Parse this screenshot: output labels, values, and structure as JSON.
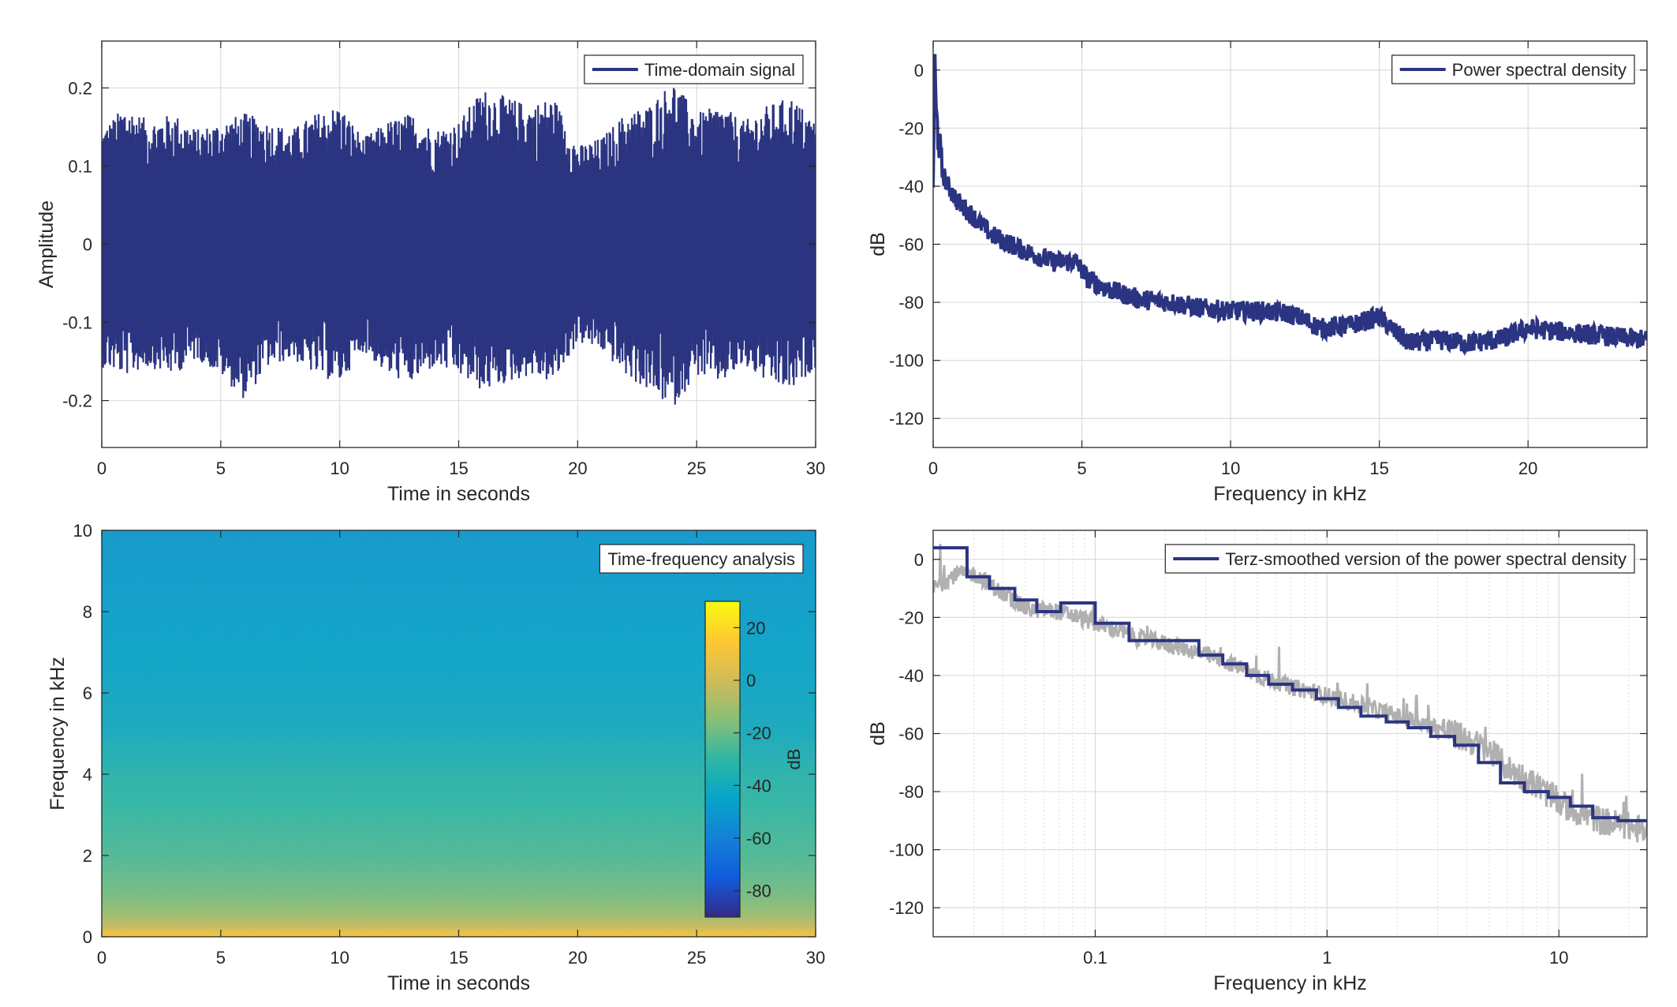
{
  "colors": {
    "series": "#2b3481",
    "raw_psd": "#b0b0b0",
    "grid": "#dcdcdc",
    "axis": "#262626"
  },
  "chart_data": [
    {
      "id": "time-signal",
      "type": "line",
      "legend": "Time-domain signal",
      "legend_position": "top-right",
      "xlabel": "Time in seconds",
      "ylabel": "Amplitude",
      "xlim": [
        0,
        30
      ],
      "ylim": [
        -0.26,
        0.26
      ],
      "xticks": [
        0,
        5,
        10,
        15,
        20,
        25,
        30
      ],
      "xtick_labels": [
        "0",
        "5",
        "10",
        "15",
        "20",
        "25",
        "30"
      ],
      "yticks": [
        -0.2,
        -0.1,
        0,
        0.1,
        0.2
      ],
      "ytick_labels": [
        "-0.2",
        "-0.1",
        "0",
        "0.1",
        "0.2"
      ],
      "grid": true,
      "envelope": {
        "t": [
          0,
          1,
          2,
          3,
          4,
          5,
          6,
          7,
          8,
          9,
          10,
          11,
          12,
          13,
          14,
          15,
          16,
          17,
          18,
          19,
          20,
          21,
          22,
          23,
          24,
          25,
          26,
          27,
          28,
          29,
          30
        ],
        "upper": [
          0.14,
          0.17,
          0.15,
          0.16,
          0.14,
          0.15,
          0.16,
          0.15,
          0.14,
          0.16,
          0.17,
          0.13,
          0.15,
          0.16,
          0.14,
          0.15,
          0.19,
          0.18,
          0.17,
          0.18,
          0.12,
          0.13,
          0.16,
          0.17,
          0.2,
          0.16,
          0.17,
          0.15,
          0.17,
          0.18,
          0.15
        ],
        "lower": [
          -0.15,
          -0.16,
          -0.15,
          -0.16,
          -0.14,
          -0.16,
          -0.19,
          -0.15,
          -0.14,
          -0.16,
          -0.17,
          -0.13,
          -0.16,
          -0.17,
          -0.15,
          -0.16,
          -0.18,
          -0.17,
          -0.16,
          -0.17,
          -0.12,
          -0.13,
          -0.16,
          -0.18,
          -0.2,
          -0.16,
          -0.17,
          -0.15,
          -0.17,
          -0.18,
          -0.15
        ]
      }
    },
    {
      "id": "psd",
      "type": "line",
      "legend": "Power spectral density",
      "legend_position": "top-right",
      "xlabel": "Frequency in kHz",
      "ylabel": "dB",
      "xlim": [
        0,
        24
      ],
      "ylim": [
        -130,
        10
      ],
      "xticks": [
        0,
        5,
        10,
        15,
        20
      ],
      "xtick_labels": [
        "0",
        "5",
        "10",
        "15",
        "20"
      ],
      "yticks": [
        -120,
        -100,
        -80,
        -60,
        -40,
        -20,
        0
      ],
      "ytick_labels": [
        "-120",
        "-100",
        "-80",
        "-60",
        "-40",
        "-20",
        "0"
      ],
      "grid": true,
      "x": [
        0,
        0.05,
        0.1,
        0.2,
        0.3,
        0.5,
        0.8,
        1,
        1.5,
        2,
        3,
        4,
        4.8,
        5.2,
        6,
        7,
        8,
        9,
        10,
        11,
        12,
        12.5,
        13,
        14,
        15,
        15.5,
        16,
        17,
        18,
        19,
        20,
        21,
        22,
        23,
        24
      ],
      "y": [
        -40,
        5,
        -15,
        -25,
        -35,
        -40,
        -45,
        -47,
        -52,
        -57,
        -62,
        -66,
        -66,
        -72,
        -76,
        -79,
        -80,
        -82,
        -83,
        -83,
        -84,
        -86,
        -89,
        -88,
        -85,
        -90,
        -94,
        -93,
        -94,
        -93,
        -89,
        -90,
        -91,
        -92,
        -93
      ]
    },
    {
      "id": "spectrogram",
      "type": "heatmap",
      "legend": "Time-frequency analysis",
      "legend_position": "top-right",
      "xlabel": "Time in seconds",
      "ylabel": "Frequency in kHz",
      "xlim": [
        0,
        30
      ],
      "ylim": [
        0,
        10
      ],
      "xticks": [
        0,
        5,
        10,
        15,
        20,
        25,
        30
      ],
      "xtick_labels": [
        "0",
        "5",
        "10",
        "15",
        "20",
        "25",
        "30"
      ],
      "yticks": [
        0,
        2,
        4,
        6,
        8,
        10
      ],
      "ytick_labels": [
        "0",
        "2",
        "4",
        "6",
        "8",
        "10"
      ],
      "colorbar": {
        "label": "dB",
        "range": [
          -90,
          30
        ],
        "ticks": [
          -80,
          -60,
          -40,
          -20,
          0,
          20
        ],
        "tick_labels": [
          "-80",
          "-60",
          "-40",
          "-20",
          "0",
          "20"
        ]
      },
      "level_profile": {
        "freq_khz": [
          0,
          0.2,
          0.5,
          1,
          2,
          3,
          4,
          5,
          6,
          8,
          10
        ],
        "db": [
          15,
          0,
          -10,
          -18,
          -25,
          -29,
          -33,
          -40,
          -43,
          -47,
          -50
        ]
      }
    },
    {
      "id": "terz-psd",
      "type": "line",
      "legend": "Terz-smoothed version of the power spectral density",
      "legend_position": "top-right",
      "xlabel": "Frequency in kHz",
      "ylabel": "dB",
      "xscale": "log",
      "xlim": [
        0.02,
        24
      ],
      "ylim": [
        -130,
        10
      ],
      "xticks": [
        0.1,
        1,
        10
      ],
      "xtick_labels": [
        "0.1",
        "1",
        "10"
      ],
      "yticks": [
        -120,
        -100,
        -80,
        -60,
        -40,
        -20,
        0
      ],
      "ytick_labels": [
        "-120",
        "-100",
        "-80",
        "-60",
        "-40",
        "-20",
        "0"
      ],
      "grid": true,
      "raw_psd": {
        "x": [
          0.02,
          0.025,
          0.03,
          0.04,
          0.05,
          0.07,
          0.1,
          0.15,
          0.2,
          0.3,
          0.5,
          0.7,
          1,
          1.5,
          2,
          3,
          4,
          5,
          6,
          8,
          10,
          12,
          15,
          20,
          24
        ],
        "y": [
          -10,
          -5,
          -5,
          -12,
          -17,
          -18,
          -22,
          -27,
          -29,
          -33,
          -40,
          -44,
          -47,
          -51,
          -54,
          -58,
          -62,
          -66,
          -72,
          -78,
          -84,
          -87,
          -90,
          -92,
          -94
        ]
      },
      "steps": {
        "edges": [
          0.02,
          0.028,
          0.035,
          0.045,
          0.056,
          0.071,
          0.1,
          0.14,
          0.28,
          0.355,
          0.45,
          0.56,
          0.71,
          0.9,
          1.12,
          1.4,
          1.8,
          2.24,
          2.8,
          3.55,
          4.5,
          5.6,
          7.1,
          9,
          11.2,
          14,
          18,
          24
        ],
        "values": [
          4,
          -6,
          -10,
          -14,
          -18,
          -15,
          -22,
          -28,
          -33,
          -36,
          -40,
          -43,
          -45,
          -48,
          -51,
          -54,
          -56,
          -58,
          -61,
          -64,
          -70,
          -77,
          -80,
          -82,
          -85,
          -89,
          -90
        ]
      }
    }
  ]
}
